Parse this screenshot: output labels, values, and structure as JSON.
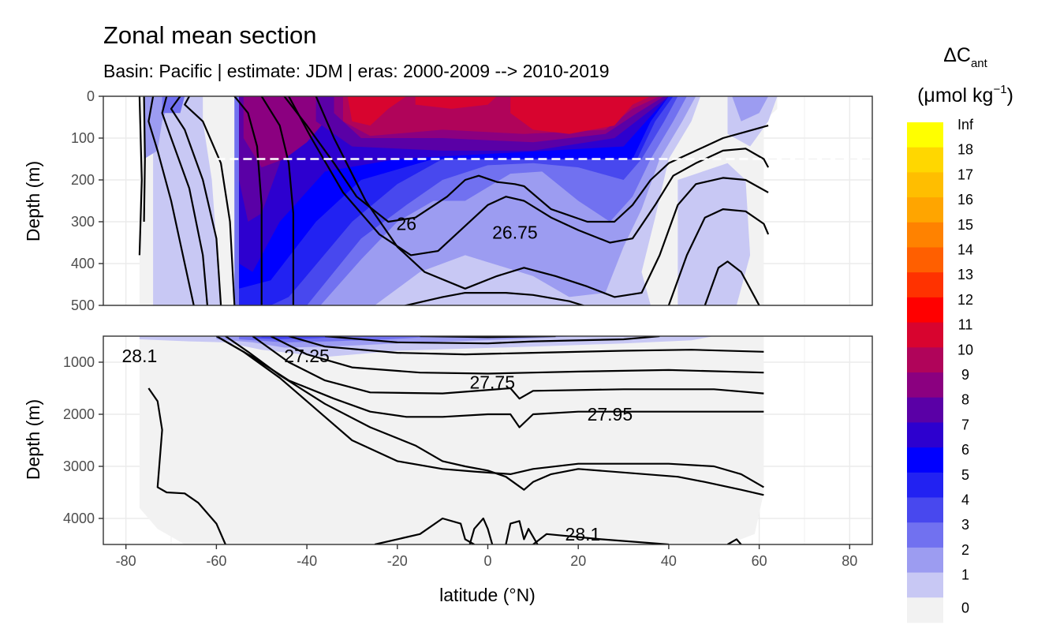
{
  "chart_data": {
    "type": "contour",
    "title": "Zonal mean section",
    "subtitle": "Basin: Pacific | estimate: JDM  | eras: 2000-2009 --> 2010-2019",
    "xlabel": "latitude (°N)",
    "ylabel": "Depth (m)",
    "xlim": [
      -85,
      85
    ],
    "x_ticks": [
      -80,
      -60,
      -40,
      -20,
      0,
      20,
      40,
      60,
      80
    ],
    "x_tick_labels": [
      "-80",
      "-60",
      "-40",
      "-20",
      "0",
      "20",
      "40",
      "60",
      "80"
    ],
    "panels": [
      {
        "name": "upper",
        "ylim": [
          0,
          500
        ],
        "y_ticks": [
          0,
          100,
          200,
          300,
          400,
          500
        ],
        "y_tick_labels": [
          "0",
          "100",
          "200",
          "300",
          "400",
          "500"
        ],
        "mixed_layer_depth_line_m": 150,
        "contour_labels": [
          {
            "text": "26",
            "lat": -18,
            "depth": 305
          },
          {
            "text": "26.75",
            "lat": 6,
            "depth": 325
          }
        ]
      },
      {
        "name": "lower",
        "ylim": [
          500,
          4500
        ],
        "y_ticks": [
          1000,
          2000,
          3000,
          4000
        ],
        "y_tick_labels": [
          "1000",
          "2000",
          "3000",
          "4000"
        ],
        "contour_labels": [
          {
            "text": "28.1",
            "lat": -77,
            "depth": 880
          },
          {
            "text": "27.25",
            "lat": -40,
            "depth": 880
          },
          {
            "text": "27.75",
            "lat": 1,
            "depth": 1390
          },
          {
            "text": "27.95",
            "lat": 27,
            "depth": 2000
          },
          {
            "text": "28.1",
            "lat": 21,
            "depth": 4300
          }
        ]
      }
    ],
    "legend": {
      "title_main": "ΔC",
      "title_sub": "ant",
      "unit_main": "(μmol kg",
      "unit_sup": "−1",
      "unit_close": ")",
      "labels": [
        "Inf",
        "18",
        "17",
        "16",
        "15",
        "14",
        "13",
        "12",
        "11",
        "10",
        "9",
        "8",
        "7",
        "6",
        "5",
        "4",
        "3",
        "2",
        "1",
        "0"
      ],
      "colors": [
        "#FFFF00",
        "#FFD700",
        "#FFBE00",
        "#FFA500",
        "#FF8200",
        "#FF5F00",
        "#FF3200",
        "#FF0000",
        "#D8042F",
        "#B0045A",
        "#8B0080",
        "#5A00A6",
        "#2D00CF",
        "#0000FF",
        "#2222F2",
        "#4848EE",
        "#7171F0",
        "#9C9CF1",
        "#C8C8F4",
        "#F2F2F2"
      ]
    }
  }
}
